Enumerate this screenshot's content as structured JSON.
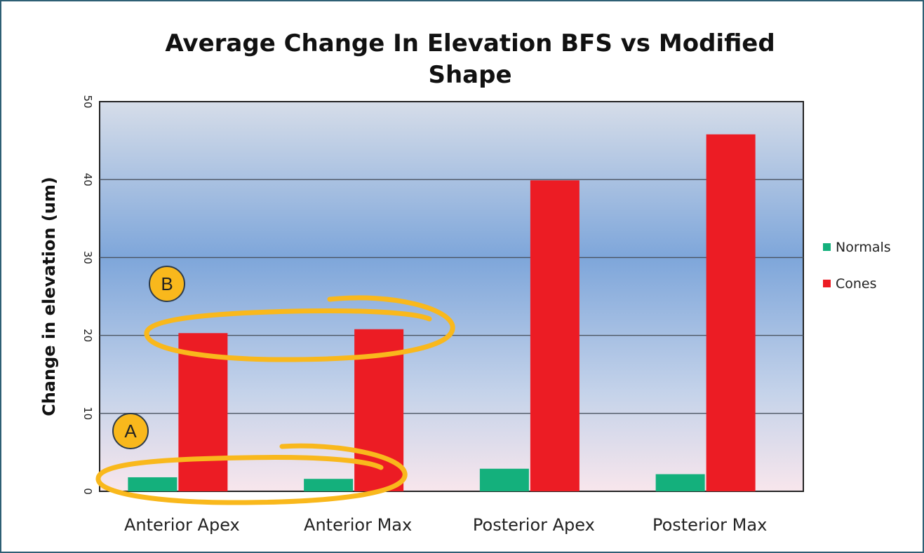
{
  "chart_data": {
    "type": "bar",
    "title_line1": "Average Change In Elevation BFS vs Modified",
    "title_line2": "Shape",
    "xlabel": "",
    "ylabel": "Change in elevation (um)",
    "ylim": [
      0,
      50
    ],
    "yticks": [
      0,
      10,
      20,
      30,
      40,
      50
    ],
    "grid": true,
    "legend_position": "right",
    "categories": [
      "Anterior Apex",
      "Anterior Max",
      "Posterior Apex",
      "Posterior Max"
    ],
    "series": [
      {
        "name": "Normals",
        "color": "#14b07c",
        "values": [
          1.8,
          1.6,
          2.9,
          2.2
        ]
      },
      {
        "name": "Cones",
        "color": "#ec1c24",
        "values": [
          20.3,
          20.8,
          39.9,
          45.8
        ]
      }
    ],
    "annotations": [
      {
        "label": "A",
        "color": "#f9b81c",
        "encircles": [
          "Anterior Apex: Normals",
          "Anterior Max: Normals"
        ]
      },
      {
        "label": "B",
        "color": "#f9b81c",
        "encircles": [
          "Anterior Apex: Cones",
          "Anterior Max: Cones"
        ]
      }
    ]
  }
}
